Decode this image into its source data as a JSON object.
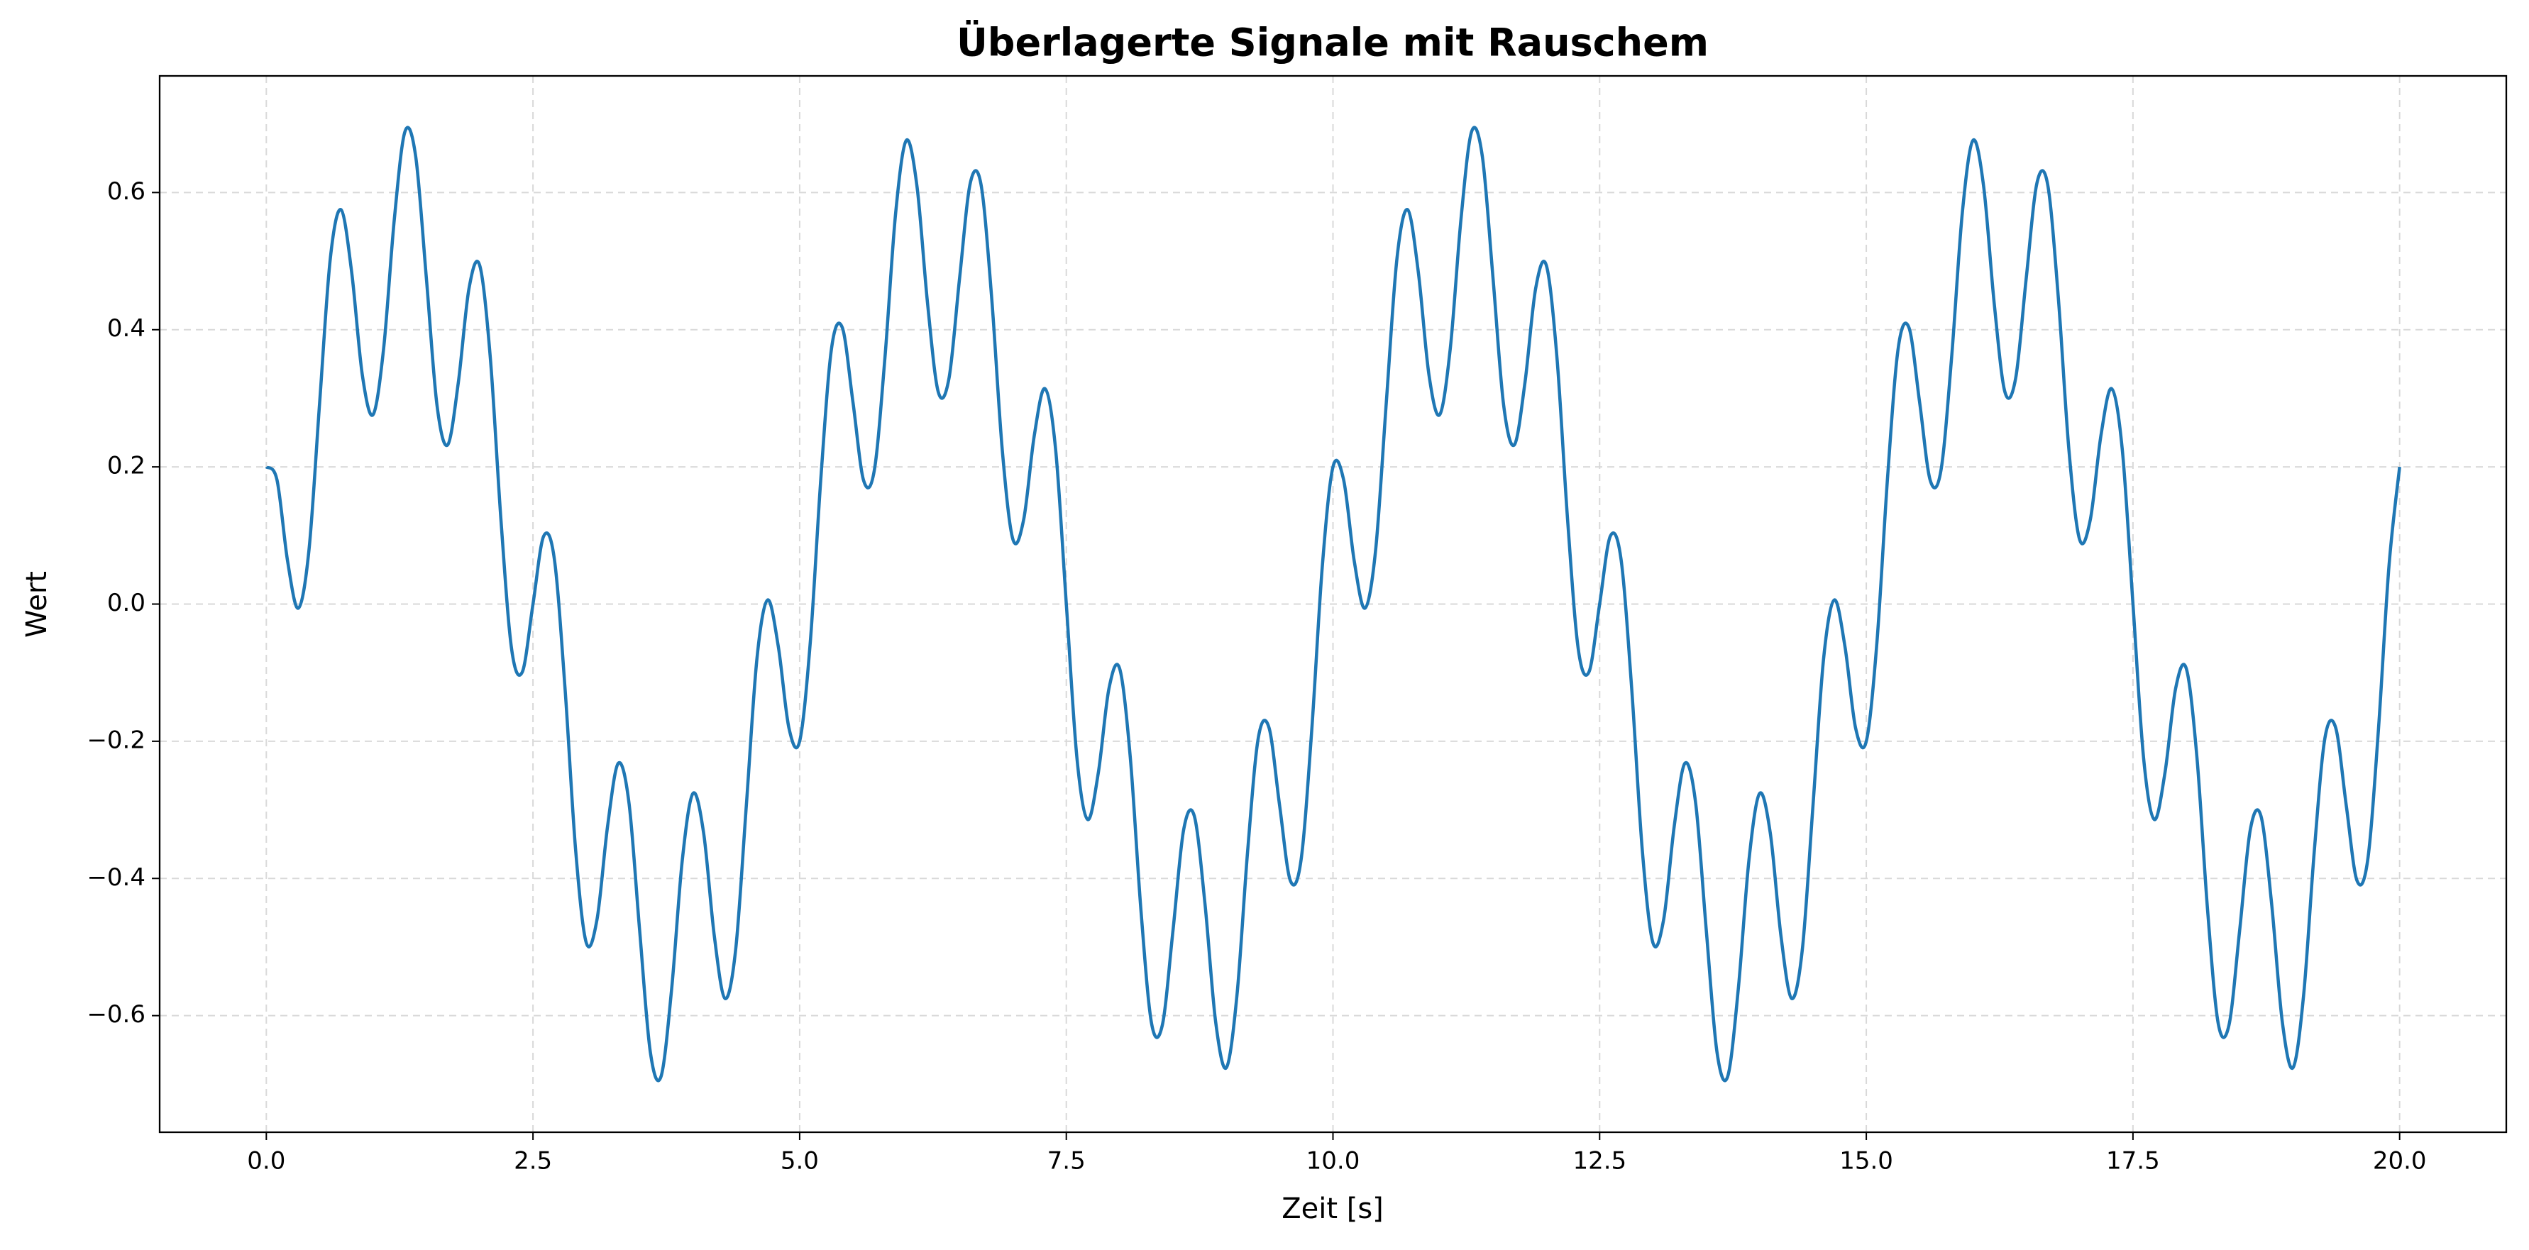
{
  "chart_data": {
    "type": "line",
    "title": "Überlagerte Signale mit Rauschem",
    "xlabel": "Zeit [s]",
    "ylabel": "Wert",
    "color": "#1f77b4",
    "grid": true,
    "xlim": [
      -1,
      21
    ],
    "ylim": [
      -0.77,
      0.77
    ],
    "xticks": [
      {
        "value": 0,
        "label": "0.0"
      },
      2.5,
      {
        "value": 5,
        "label": "5.0"
      },
      7.5,
      {
        "value": 10,
        "label": "10.0"
      },
      12.5,
      {
        "value": 15,
        "label": "15.0"
      },
      17.5,
      {
        "value": 20,
        "label": "20.0"
      }
    ],
    "yticks": [
      {
        "value": -0.6,
        "label": "−0.6"
      },
      {
        "value": -0.4,
        "label": "−0.4"
      },
      {
        "value": -0.2,
        "label": "−0.2"
      },
      {
        "value": 0,
        "label": "0.0"
      },
      0.2,
      0.4,
      0.6
    ],
    "x": [
      0,
      0.1,
      0.2,
      0.3,
      0.4,
      0.5,
      0.6,
      0.7,
      0.8,
      0.9,
      1,
      1.1,
      1.2,
      1.3,
      1.4,
      1.5,
      1.6,
      1.7,
      1.8,
      1.9,
      2,
      2.1,
      2.2,
      2.3,
      2.4,
      2.5,
      2.6,
      2.7,
      2.8,
      2.9,
      3,
      3.1,
      3.2,
      3.3,
      3.4,
      3.5,
      3.6,
      3.7,
      3.8,
      3.9,
      4,
      4.1,
      4.2,
      4.3,
      4.4,
      4.5,
      4.6,
      4.7,
      4.8,
      4.9,
      5,
      5.1,
      5.2,
      5.3,
      5.4,
      5.5,
      5.6,
      5.7,
      5.8,
      5.9,
      6,
      6.1,
      6.2,
      6.3,
      6.4,
      6.5,
      6.6,
      6.7,
      6.8,
      6.9,
      7,
      7.1,
      7.2,
      7.3,
      7.4,
      7.5,
      7.6,
      7.7,
      7.8,
      7.9,
      8,
      8.1,
      8.2,
      8.3,
      8.4,
      8.5,
      8.6,
      8.7,
      8.8,
      8.9,
      9,
      9.1,
      9.2,
      9.3,
      9.4,
      9.5,
      9.6,
      9.7,
      9.8,
      9.9,
      10,
      10.1,
      10.2,
      10.3,
      10.4,
      10.5,
      10.6,
      10.7,
      10.8,
      10.9,
      11,
      11.1,
      11.2,
      11.3,
      11.4,
      11.5,
      11.6,
      11.7,
      11.8,
      11.9,
      12,
      12.1,
      12.2,
      12.3,
      12.4,
      12.5,
      12.6,
      12.7,
      12.8,
      12.9,
      13,
      13.1,
      13.2,
      13.3,
      13.4,
      13.5,
      13.6,
      13.7,
      13.8,
      13.9,
      14,
      14.1,
      14.2,
      14.3,
      14.4,
      14.5,
      14.6,
      14.7,
      14.8,
      14.9,
      15,
      15.1,
      15.2,
      15.3,
      15.4,
      15.5,
      15.6,
      15.7,
      15.8,
      15.9,
      16,
      16.1,
      16.2,
      16.3,
      16.4,
      16.5,
      16.6,
      16.7,
      16.8,
      16.9,
      17,
      17.1,
      17.2,
      17.3,
      17.4,
      17.5,
      17.6,
      17.7,
      17.8,
      17.9,
      18,
      18.1,
      18.2,
      18.3,
      18.4,
      18.5,
      18.6,
      18.7,
      18.8,
      18.9,
      19,
      19.1,
      19.2,
      19.3,
      19.4,
      19.5,
      19.6,
      19.7,
      19.8,
      19.9,
      20
    ],
    "values": [
      0.2,
      0.181,
      0.062,
      -0.006,
      0.079,
      0.294,
      0.504,
      0.575,
      0.484,
      0.334,
      0.276,
      0.373,
      0.561,
      0.689,
      0.653,
      0.476,
      0.29,
      0.232,
      0.323,
      0.46,
      0.494,
      0.359,
      0.122,
      -0.066,
      -0.099,
      0,
      0.099,
      0.066,
      -0.122,
      -0.359,
      -0.494,
      -0.46,
      -0.323,
      -0.232,
      -0.29,
      -0.476,
      -0.653,
      -0.689,
      -0.561,
      -0.373,
      -0.276,
      -0.334,
      -0.484,
      -0.575,
      -0.504,
      -0.294,
      -0.079,
      0.006,
      -0.062,
      -0.181,
      -0.2,
      -0.055,
      0.186,
      0.374,
      0.403,
      0.294,
      0.18,
      0.195,
      0.36,
      0.57,
      0.676,
      0.609,
      0.437,
      0.309,
      0.329,
      0.476,
      0.614,
      0.612,
      0.447,
      0.224,
      0.094,
      0.123,
      0.246,
      0.314,
      0.225,
      0,
      -0.225,
      -0.314,
      -0.246,
      -0.123,
      -0.094,
      -0.224,
      -0.447,
      -0.612,
      -0.614,
      -0.476,
      -0.329,
      -0.309,
      -0.437,
      -0.609,
      -0.676,
      -0.57,
      -0.36,
      -0.195,
      -0.18,
      -0.294,
      -0.403,
      -0.374,
      -0.186,
      0.055,
      0.2,
      0.181,
      0.062,
      -0.006,
      0.079,
      0.294,
      0.504,
      0.575,
      0.484,
      0.334,
      0.276,
      0.373,
      0.561,
      0.689,
      0.653,
      0.476,
      0.29,
      0.232,
      0.323,
      0.46,
      0.494,
      0.359,
      0.122,
      -0.066,
      -0.099,
      0,
      0.099,
      0.066,
      -0.122,
      -0.359,
      -0.494,
      -0.46,
      -0.323,
      -0.232,
      -0.29,
      -0.476,
      -0.653,
      -0.689,
      -0.561,
      -0.373,
      -0.276,
      -0.334,
      -0.484,
      -0.575,
      -0.504,
      -0.294,
      -0.079,
      0.006,
      -0.062,
      -0.181,
      -0.2,
      -0.055,
      0.186,
      0.374,
      0.403,
      0.294,
      0.18,
      0.195,
      0.36,
      0.57,
      0.676,
      0.609,
      0.437,
      0.309,
      0.329,
      0.476,
      0.614,
      0.612,
      0.447,
      0.224,
      0.094,
      0.123,
      0.246,
      0.314,
      0.225,
      0,
      -0.225,
      -0.314,
      -0.246,
      -0.123,
      -0.094,
      -0.224,
      -0.447,
      -0.612,
      -0.614,
      -0.476,
      -0.329,
      -0.309,
      -0.437,
      -0.609,
      -0.676,
      -0.57,
      -0.36,
      -0.195,
      -0.18,
      -0.294,
      -0.403,
      -0.374,
      -0.186,
      0.055,
      0.2
    ]
  }
}
